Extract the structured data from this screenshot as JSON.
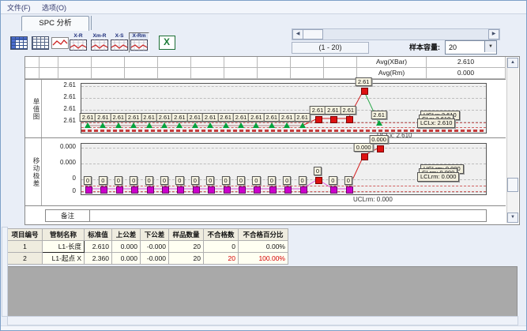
{
  "menu": {
    "items": [
      "文件(F)",
      "选项(O)"
    ]
  },
  "tabs": {
    "spc": "SPC 分析"
  },
  "toolbar": {
    "buttons": [
      {
        "name": "data-sheet",
        "label": ""
      },
      {
        "name": "grid-sheet",
        "label": ""
      },
      {
        "name": "line-chart",
        "label": ""
      },
      {
        "name": "xr-chart",
        "label": "X-R"
      },
      {
        "name": "xmr-chart",
        "label": "Xm-R"
      },
      {
        "name": "xs-chart",
        "label": "X-S"
      },
      {
        "name": "xrm-chart",
        "label": "X-Rm",
        "pressed": true
      },
      {
        "name": "excel-export",
        "label": ""
      }
    ],
    "range_label": "(1 - 20)",
    "sample_size_label": "样本容量:",
    "sample_size_value": "20"
  },
  "stats": {
    "rows": [
      {
        "label": "Avg(XBar)",
        "value": "2.610"
      },
      {
        "label": "Avg(Rm)",
        "value": "0.000"
      }
    ]
  },
  "colors": {
    "green": "#00a33c",
    "red": "#dd1111",
    "magenta": "#cc00cc",
    "limit_line": "#d06060",
    "seg_red": "#d42222",
    "seg_green": "#2aa84a",
    "seg_magenta": "#dd55dd",
    "seg_dim": "#b08585"
  },
  "chart_data": [
    {
      "id": "xbar",
      "type": "line",
      "row_label": "单值图",
      "yticks": [
        "2.61",
        "2.61",
        "2.61",
        "2.61"
      ],
      "n_points": 20,
      "ylim_note": "all ticks 2.61",
      "points": [
        {
          "repeat": 15,
          "label": "2.61",
          "value": 2.61,
          "marker": "green",
          "level": "base",
          "seg": "dim"
        },
        {
          "repeat": 3,
          "label": "2.61",
          "value": 2.61,
          "marker": "red",
          "level": "raised",
          "seg": "red"
        },
        {
          "repeat": 1,
          "label": "2.61",
          "value": 2.61,
          "marker": "red",
          "level": "peak",
          "seg": "red"
        },
        {
          "repeat": 1,
          "label": "2.61",
          "value": 2.61,
          "marker": "green",
          "level": "end",
          "seg": "green"
        }
      ],
      "limit_boxes": [
        "UCLx: 2.610",
        "CLx: 2.610",
        "LCLx: 2.610"
      ],
      "below_label": "UCLx: 2.610",
      "stats": {
        "avg": "2.610",
        "ucl": "2.610",
        "cl": "2.610",
        "lcl": "2.610"
      }
    },
    {
      "id": "rm",
      "type": "line",
      "row_label": "移动极差",
      "yticks": [
        "0.000",
        "0.000",
        "0",
        "0"
      ],
      "n_points": 20,
      "ylim_note": "all near 0",
      "points": [
        {
          "repeat": 15,
          "label": "0",
          "value": 0,
          "marker": "magenta",
          "level": "base",
          "seg": "magenta"
        },
        {
          "repeat": 1,
          "label": "0",
          "value": 0,
          "marker": "red",
          "level": "raised",
          "seg": "magenta"
        },
        {
          "repeat": 2,
          "label": "0",
          "value": 0,
          "marker": "magenta",
          "level": "base",
          "seg": "magenta"
        },
        {
          "repeat": 1,
          "label": "0.000",
          "value": 0,
          "marker": "red",
          "level": "peak",
          "seg": "red"
        },
        {
          "repeat": 1,
          "label": "0.000",
          "value": 0,
          "marker": "red",
          "level": "peak2",
          "seg": "red"
        }
      ],
      "limit_boxes": [
        "UCLrm: 0.000",
        "CLrm: 0.000",
        "LCLrm: 0.000"
      ],
      "below_label": "UCLrm: 0.000",
      "stats": {
        "ucl": "0.000",
        "cl": "0.000",
        "lcl": "0.000"
      }
    }
  ],
  "remarks_label": "备注",
  "table": {
    "headers": [
      "项目编号",
      "管制名称",
      "标准值",
      "上公差",
      "下公差",
      "样品数量",
      "不合格数",
      "不合格百分比"
    ],
    "rows": [
      {
        "cells": [
          "1",
          "L1-长度",
          "2.610",
          "0.000",
          "-0.000",
          "20",
          "0",
          "0.00%"
        ],
        "red": []
      },
      {
        "cells": [
          "2",
          "L1-起点 X",
          "2.360",
          "0.000",
          "-0.000",
          "20",
          "20",
          "100.00%"
        ],
        "red": [
          6,
          7
        ]
      }
    ],
    "selected_cell": {
      "row": 0,
      "col": 1
    }
  }
}
